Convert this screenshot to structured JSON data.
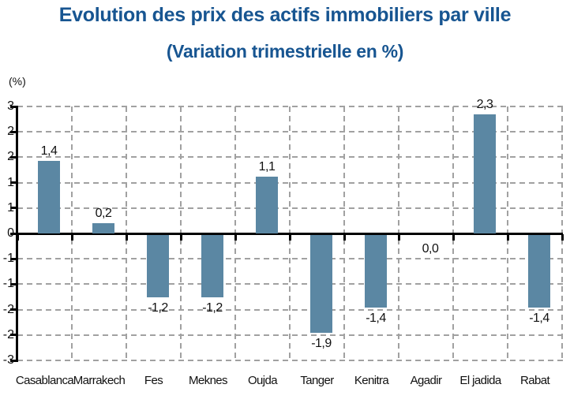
{
  "title": {
    "line1": "Evolution des prix des actifs immobiliers par ville",
    "line2": "(Variation trimestrielle en %)"
  },
  "axis_unit_label": "(%)",
  "chart_data": {
    "type": "bar",
    "title": "Evolution des prix des actifs immobiliers par ville (Variation trimestrielle en %)",
    "categories": [
      "Casablanca",
      "Marrakech",
      "Fes",
      "Meknes",
      "Oujda",
      "Tanger",
      "Kenitra",
      "Agadir",
      "El jadida",
      "Rabat"
    ],
    "values": [
      1.4,
      0.2,
      -1.2,
      -1.2,
      1.1,
      -1.9,
      -1.4,
      0.0,
      2.3,
      -1.4
    ],
    "value_labels": [
      "1,4",
      "0,2",
      "-1,2",
      "-1,2",
      "1,1",
      "-1,9",
      "-1,4",
      "0,0",
      "2,3",
      "-1,4"
    ],
    "xlabel": "",
    "ylabel": "(%)",
    "ylim": [
      -3,
      3
    ],
    "ytick_step": 0.6,
    "ytick_labels": [
      "3",
      "2",
      "2",
      "1",
      "1",
      "0",
      "-1",
      "-1",
      "-2",
      "-2",
      "-3"
    ],
    "grid": "dashed",
    "legend": "none",
    "colors": {
      "bar": "#5b87a3",
      "title": "#175591",
      "grid": "#a1a1a1",
      "axis": "#000000",
      "text": "#111111"
    }
  }
}
